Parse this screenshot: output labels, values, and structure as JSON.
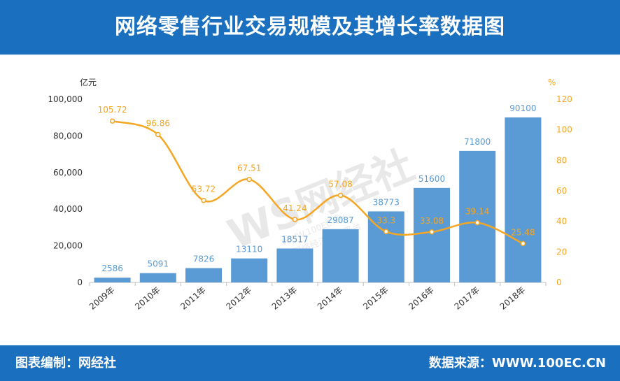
{
  "header": {
    "title": "网络零售行业交易规模及其增长率数据图"
  },
  "footer": {
    "left": "图表编制：网经社",
    "right": "数据来源：WWW.100EC.CN"
  },
  "watermark": {
    "logo": "WS网经社",
    "url": "WWW.100EC.CN",
    "subtitle": "网络经济服务平台"
  },
  "colors": {
    "header_bg": "#1a6fbf",
    "bar": "#5b9bd5",
    "line": "#f5a623",
    "bar_label": "#5b9bd5",
    "line_label": "#f5a623"
  },
  "chart_data": {
    "type": "bar",
    "categories": [
      "2009年",
      "2010年",
      "2011年",
      "2012年",
      "2013年",
      "2014年",
      "2015年",
      "2016年",
      "2017年",
      "2018年"
    ],
    "series": [
      {
        "type": "bar",
        "axis": "left",
        "values": [
          2586,
          5091,
          7826,
          13110,
          18517,
          29087,
          38773,
          51600,
          71800,
          90100
        ]
      },
      {
        "type": "line",
        "axis": "right",
        "values": [
          105.72,
          96.86,
          53.72,
          67.51,
          41.24,
          57.08,
          33.3,
          33.08,
          39.14,
          25.48
        ]
      }
    ],
    "bar_labels": [
      "2586",
      "5091",
      "7826",
      "13110",
      "18517",
      "29087",
      "38773",
      "51600",
      "71800",
      "90100"
    ],
    "line_labels": [
      "105.72",
      "96.86",
      "53.72",
      "67.51",
      "41.24",
      "57.08",
      "33.3",
      "33.08",
      "39.14",
      "25.48"
    ],
    "y_left": {
      "unit": "亿元",
      "ticks": [
        0,
        20000,
        40000,
        60000,
        80000,
        100000
      ],
      "tick_labels": [
        "0",
        "20,000",
        "40,000",
        "60,000",
        "80,000",
        "100,000"
      ],
      "ylim": [
        0,
        100000
      ]
    },
    "y_right": {
      "unit": "%",
      "ticks": [
        0,
        20,
        40,
        60,
        80,
        100,
        120
      ],
      "tick_labels": [
        "0",
        "20",
        "40",
        "60",
        "80",
        "100",
        "120"
      ],
      "ylim": [
        0,
        120
      ]
    },
    "grid": false,
    "legend": "none"
  }
}
